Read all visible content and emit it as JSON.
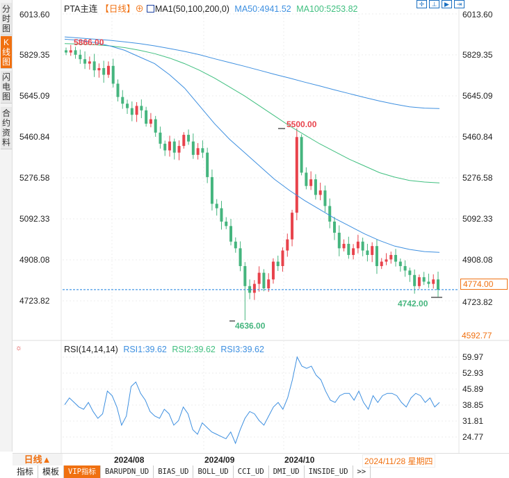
{
  "sidebar": {
    "tabs": [
      {
        "label": "分时图",
        "active": false
      },
      {
        "label": "K线图",
        "active": true
      },
      {
        "label": "闪电图",
        "active": false
      },
      {
        "label": "合约资料",
        "active": false
      }
    ]
  },
  "header": {
    "symbol": "PTA主连",
    "period": "【日线】",
    "plus": "⊕",
    "indicator": "MA1(50,100,200,0)",
    "ma50": "MA50:4941.52",
    "ma100": "MA100:5253.82",
    "tools": [
      "zoom-fit",
      "zoom-range",
      "step",
      "forward"
    ]
  },
  "colors": {
    "up": "#e8434c",
    "down": "#45b57e",
    "ma50": "#3d8fe0",
    "ma100": "#3fbf7f",
    "ma200": "#3d8fe0",
    "accent": "#f07010"
  },
  "price_axis": {
    "labels": [
      "6013.60",
      "5829.35",
      "5645.09",
      "5460.84",
      "5276.58",
      "5092.33",
      "4908.08",
      "4723.82"
    ],
    "current": "4774.00",
    "bottom": "4592.77"
  },
  "annotations": {
    "high1": "5866.00",
    "high2": "5500.00",
    "low1": "4636.00",
    "low2": "4742.00"
  },
  "rsi": {
    "title": "RSI(14,14,14)",
    "rsi1": "RSI1:39.62",
    "rsi2": "RSI2:39.62",
    "rsi3": "RSI3:39.62",
    "labels": [
      "59.97",
      "52.93",
      "45.89",
      "38.85",
      "31.81",
      "24.77"
    ]
  },
  "chart_data": {
    "type": "candlestick",
    "closes": [
      5840,
      5850,
      5830,
      5810,
      5790,
      5800,
      5760,
      5770,
      5740,
      5780,
      5700,
      5640,
      5610,
      5590,
      5560,
      5600,
      5580,
      5520,
      5540,
      5480,
      5430,
      5400,
      5440,
      5390,
      5420,
      5470,
      5440,
      5380,
      5410,
      5390,
      5280,
      5160,
      5140,
      5080,
      5060,
      4990,
      4960,
      4880,
      4790,
      4760,
      4800,
      4850,
      4780,
      4820,
      4900,
      4880,
      4950,
      5000,
      5120,
      5460,
      5300,
      5240,
      5270,
      5200,
      5220,
      5150,
      5080,
      5030,
      4960,
      4980,
      4930,
      4960,
      4990,
      4950,
      4930,
      4970,
      4880,
      4900,
      4910,
      4930,
      4900,
      4880,
      4860,
      4840,
      4790,
      4830,
      4810,
      4800,
      4820,
      4774
    ],
    "ma50": [
      5900,
      5895,
      5885,
      5870,
      5850,
      5820,
      5790,
      5740,
      5680,
      5600,
      5520,
      5450,
      5390,
      5330,
      5270,
      5220,
      5175,
      5135,
      5095,
      5060,
      5025,
      4995,
      4970,
      4955,
      4945,
      4941.52
    ],
    "ma100": [
      5880,
      5878,
      5875,
      5870,
      5862,
      5850,
      5835,
      5815,
      5790,
      5760,
      5725,
      5685,
      5645,
      5600,
      5555,
      5510,
      5470,
      5430,
      5395,
      5360,
      5330,
      5300,
      5280,
      5265,
      5258,
      5253.82
    ],
    "ma200": [
      5910,
      5905,
      5900,
      5895,
      5888,
      5880,
      5870,
      5858,
      5845,
      5830,
      5812,
      5795,
      5778,
      5760,
      5742,
      5725,
      5707,
      5690,
      5672,
      5655,
      5638,
      5622,
      5608,
      5596,
      5590,
      5588
    ],
    "rsi": [
      39,
      42,
      40,
      38,
      37,
      40,
      36,
      33,
      35,
      45,
      43,
      38,
      30,
      34,
      47,
      49,
      44,
      41,
      36,
      34,
      33,
      37,
      35,
      30,
      32,
      38,
      35,
      28,
      26,
      31,
      29,
      27,
      26,
      25,
      24,
      27,
      22,
      28,
      33,
      36,
      35,
      32,
      30,
      34,
      38,
      40,
      37,
      42,
      50,
      60,
      56,
      55,
      56,
      52,
      50,
      45,
      41,
      40,
      43,
      44,
      44,
      41,
      45,
      40,
      37,
      43,
      40,
      43,
      44,
      44,
      43,
      40,
      38,
      42,
      44,
      43,
      40,
      42,
      38,
      40
    ],
    "ylim": [
      4592.77,
      6013.6
    ],
    "dates": [
      "2024/08",
      "2024/09",
      "2024/10"
    ]
  },
  "footer": {
    "period": "日线▲",
    "current_date": "2024/11/28 星期四",
    "tabs": [
      "指标",
      "模板",
      "VIP指标",
      "BARUPDN_UD",
      "BIAS_UD",
      "BOLL_UD",
      "CCI_UD",
      "DMI_UD",
      "INSIDE_UD",
      ">>"
    ]
  }
}
